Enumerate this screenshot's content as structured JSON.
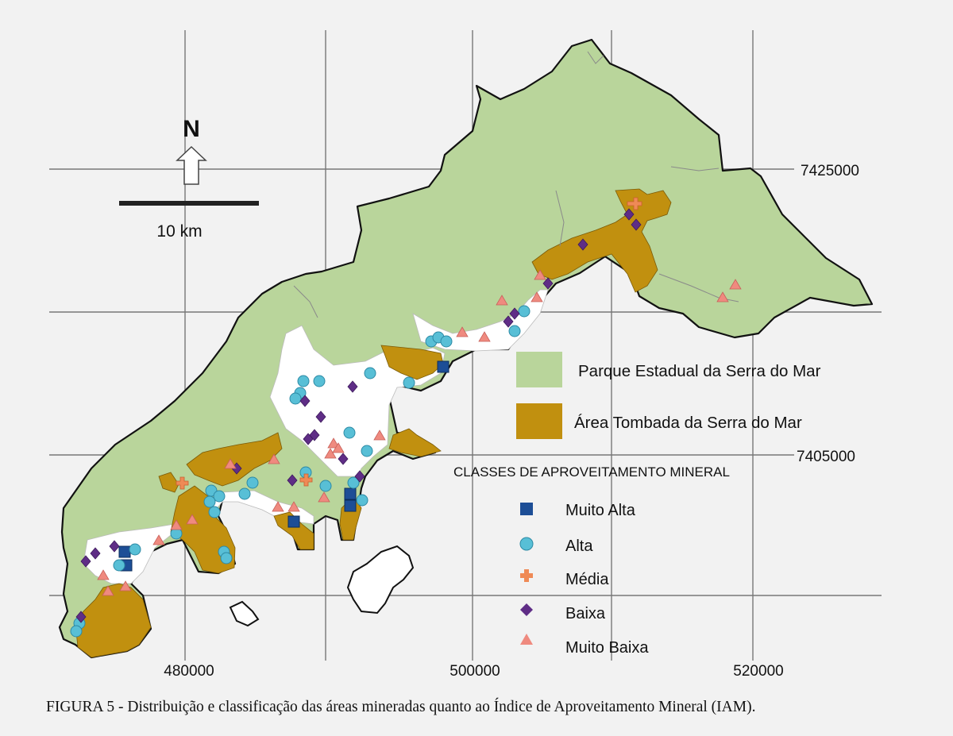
{
  "north": {
    "label": "N"
  },
  "scale_bar": {
    "label": "10 km"
  },
  "coordinates": {
    "easting": [
      "480000",
      "500000",
      "520000"
    ],
    "northing": [
      "7425000",
      "7405000"
    ]
  },
  "legend": {
    "areas": [
      {
        "id": "parque",
        "label": "Parque Estadual da Serra do Mar",
        "color": "#b9d59b"
      },
      {
        "id": "tombada",
        "label": "Área Tombada da Serra do Mar",
        "color": "#c1900f"
      }
    ],
    "classes_title": "CLASSES DE APROVEITAMENTO MINERAL",
    "classes": [
      {
        "id": "muito-alta",
        "label": "Muito Alta",
        "symbol": "square",
        "color": "#1d4e96"
      },
      {
        "id": "alta",
        "label": "Alta",
        "symbol": "circle",
        "color": "#58bfd6"
      },
      {
        "id": "media",
        "label": "Média",
        "symbol": "cross",
        "color": "#ef8a56"
      },
      {
        "id": "baixa",
        "label": "Baixa",
        "symbol": "diamond",
        "color": "#5f2d86"
      },
      {
        "id": "muito-baixa",
        "label": "Muito Baixa",
        "symbol": "triangle",
        "color": "#ef8a7f"
      }
    ]
  },
  "caption": "FIGURA 5 - Distribuição e classificação das áreas mineradas quanto ao Índice de Aproveitamento Mineral (IAM)."
}
